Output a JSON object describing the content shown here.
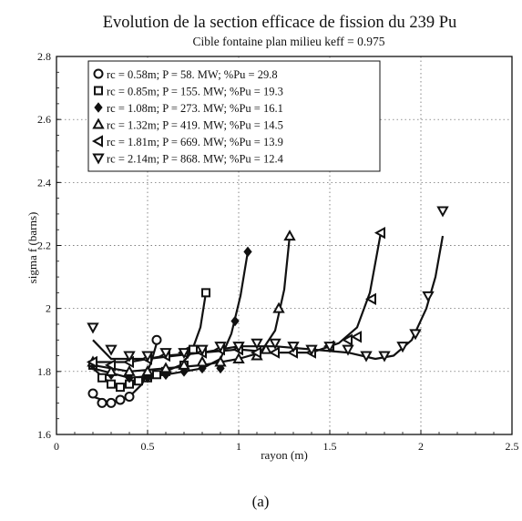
{
  "chart_data": {
    "type": "line",
    "title": "Evolution de la section efficace de fission du 239 Pu",
    "subtitle": "Cible fontaine  plan milieu  keff = 0.975",
    "xlabel": "rayon (m)",
    "ylabel": "sigma f (barns)",
    "xlim": [
      0,
      2.5
    ],
    "ylim": [
      1.6,
      2.8
    ],
    "x_ticks": [
      "0",
      "0.5",
      "1",
      "1.5",
      "2",
      "2.5"
    ],
    "y_ticks": [
      "1.6",
      "1.8",
      "2",
      "2.2",
      "2.4",
      "2.6",
      "2.8"
    ],
    "grid": true,
    "legend_position": "top-left",
    "caption": "(a)",
    "series": [
      {
        "name": "rc = 0.58m; P = 58. MW; %Pu = 29.8",
        "marker": "circle",
        "points": [
          [
            0.2,
            1.73
          ],
          [
            0.25,
            1.7
          ],
          [
            0.3,
            1.7
          ],
          [
            0.35,
            1.71
          ],
          [
            0.4,
            1.72
          ],
          [
            0.55,
            1.9
          ]
        ],
        "curve": [
          [
            0.2,
            1.72
          ],
          [
            0.3,
            1.7
          ],
          [
            0.4,
            1.72
          ],
          [
            0.47,
            1.76
          ],
          [
            0.52,
            1.83
          ],
          [
            0.56,
            1.91
          ]
        ]
      },
      {
        "name": "rc = 0.85m; P = 155. MW; %Pu = 19.3",
        "marker": "square",
        "points": [
          [
            0.2,
            1.82
          ],
          [
            0.25,
            1.78
          ],
          [
            0.3,
            1.76
          ],
          [
            0.35,
            1.75
          ],
          [
            0.4,
            1.76
          ],
          [
            0.45,
            1.77
          ],
          [
            0.5,
            1.78
          ],
          [
            0.55,
            1.79
          ],
          [
            0.6,
            1.8
          ],
          [
            0.7,
            1.82
          ],
          [
            0.75,
            1.87
          ],
          [
            0.82,
            2.05
          ]
        ],
        "curve": [
          [
            0.2,
            1.81
          ],
          [
            0.3,
            1.76
          ],
          [
            0.4,
            1.76
          ],
          [
            0.5,
            1.78
          ],
          [
            0.6,
            1.8
          ],
          [
            0.68,
            1.82
          ],
          [
            0.74,
            1.86
          ],
          [
            0.79,
            1.94
          ],
          [
            0.82,
            2.05
          ]
        ]
      },
      {
        "name": "rc = 1.08m; P = 273. MW; %Pu = 16.1",
        "marker": "diamond",
        "points": [
          [
            0.2,
            1.82
          ],
          [
            0.3,
            1.79
          ],
          [
            0.4,
            1.78
          ],
          [
            0.5,
            1.78
          ],
          [
            0.6,
            1.79
          ],
          [
            0.7,
            1.8
          ],
          [
            0.8,
            1.81
          ],
          [
            0.9,
            1.81
          ],
          [
            0.98,
            1.96
          ],
          [
            1.05,
            2.18
          ]
        ],
        "curve": [
          [
            0.2,
            1.81
          ],
          [
            0.4,
            1.78
          ],
          [
            0.6,
            1.79
          ],
          [
            0.8,
            1.81
          ],
          [
            0.9,
            1.84
          ],
          [
            0.96,
            1.92
          ],
          [
            1.01,
            2.04
          ],
          [
            1.05,
            2.18
          ]
        ]
      },
      {
        "name": "rc = 1.32m; P = 419. MW; %Pu = 14.5",
        "marker": "triangle-up",
        "points": [
          [
            0.2,
            1.83
          ],
          [
            0.3,
            1.8
          ],
          [
            0.4,
            1.8
          ],
          [
            0.5,
            1.8
          ],
          [
            0.6,
            1.81
          ],
          [
            0.7,
            1.82
          ],
          [
            0.8,
            1.83
          ],
          [
            0.9,
            1.83
          ],
          [
            1.0,
            1.84
          ],
          [
            1.1,
            1.85
          ],
          [
            1.15,
            1.87
          ],
          [
            1.22,
            2.0
          ],
          [
            1.28,
            2.23
          ]
        ],
        "curve": [
          [
            0.2,
            1.82
          ],
          [
            0.4,
            1.8
          ],
          [
            0.6,
            1.81
          ],
          [
            0.8,
            1.82
          ],
          [
            1.0,
            1.84
          ],
          [
            1.12,
            1.86
          ],
          [
            1.2,
            1.93
          ],
          [
            1.25,
            2.06
          ],
          [
            1.28,
            2.23
          ]
        ]
      },
      {
        "name": "rc = 1.81m; P = 669. MW; %Pu = 13.9",
        "marker": "triangle-left",
        "points": [
          [
            0.2,
            1.83
          ],
          [
            0.3,
            1.82
          ],
          [
            0.4,
            1.83
          ],
          [
            0.5,
            1.84
          ],
          [
            0.6,
            1.85
          ],
          [
            0.7,
            1.86
          ],
          [
            0.8,
            1.86
          ],
          [
            0.9,
            1.87
          ],
          [
            1.0,
            1.87
          ],
          [
            1.1,
            1.86
          ],
          [
            1.2,
            1.86
          ],
          [
            1.3,
            1.86
          ],
          [
            1.4,
            1.86
          ],
          [
            1.5,
            1.88
          ],
          [
            1.6,
            1.9
          ],
          [
            1.65,
            1.91
          ],
          [
            1.73,
            2.03
          ],
          [
            1.78,
            2.24
          ]
        ],
        "curve": [
          [
            0.2,
            1.83
          ],
          [
            0.4,
            1.83
          ],
          [
            0.6,
            1.85
          ],
          [
            0.8,
            1.86
          ],
          [
            1.0,
            1.87
          ],
          [
            1.2,
            1.86
          ],
          [
            1.4,
            1.86
          ],
          [
            1.55,
            1.89
          ],
          [
            1.65,
            1.94
          ],
          [
            1.72,
            2.05
          ],
          [
            1.78,
            2.24
          ]
        ]
      },
      {
        "name": "rc = 2.14m; P = 868. MW; %Pu = 12.4",
        "marker": "triangle-down",
        "points": [
          [
            0.2,
            1.94
          ],
          [
            0.3,
            1.87
          ],
          [
            0.4,
            1.85
          ],
          [
            0.5,
            1.85
          ],
          [
            0.6,
            1.86
          ],
          [
            0.7,
            1.86
          ],
          [
            0.8,
            1.87
          ],
          [
            0.9,
            1.88
          ],
          [
            1.0,
            1.88
          ],
          [
            1.1,
            1.89
          ],
          [
            1.2,
            1.89
          ],
          [
            1.3,
            1.88
          ],
          [
            1.4,
            1.87
          ],
          [
            1.5,
            1.88
          ],
          [
            1.6,
            1.87
          ],
          [
            1.7,
            1.85
          ],
          [
            1.8,
            1.85
          ],
          [
            1.9,
            1.88
          ],
          [
            1.97,
            1.92
          ],
          [
            2.04,
            2.04
          ],
          [
            2.12,
            2.31
          ]
        ],
        "curve": [
          [
            0.2,
            1.9
          ],
          [
            0.3,
            1.84
          ],
          [
            0.5,
            1.84
          ],
          [
            0.8,
            1.86
          ],
          [
            1.0,
            1.88
          ],
          [
            1.2,
            1.88
          ],
          [
            1.4,
            1.87
          ],
          [
            1.6,
            1.86
          ],
          [
            1.75,
            1.84
          ],
          [
            1.85,
            1.85
          ],
          [
            1.95,
            1.9
          ],
          [
            2.03,
            2.0
          ],
          [
            2.08,
            2.1
          ],
          [
            2.12,
            2.23
          ]
        ]
      }
    ]
  }
}
